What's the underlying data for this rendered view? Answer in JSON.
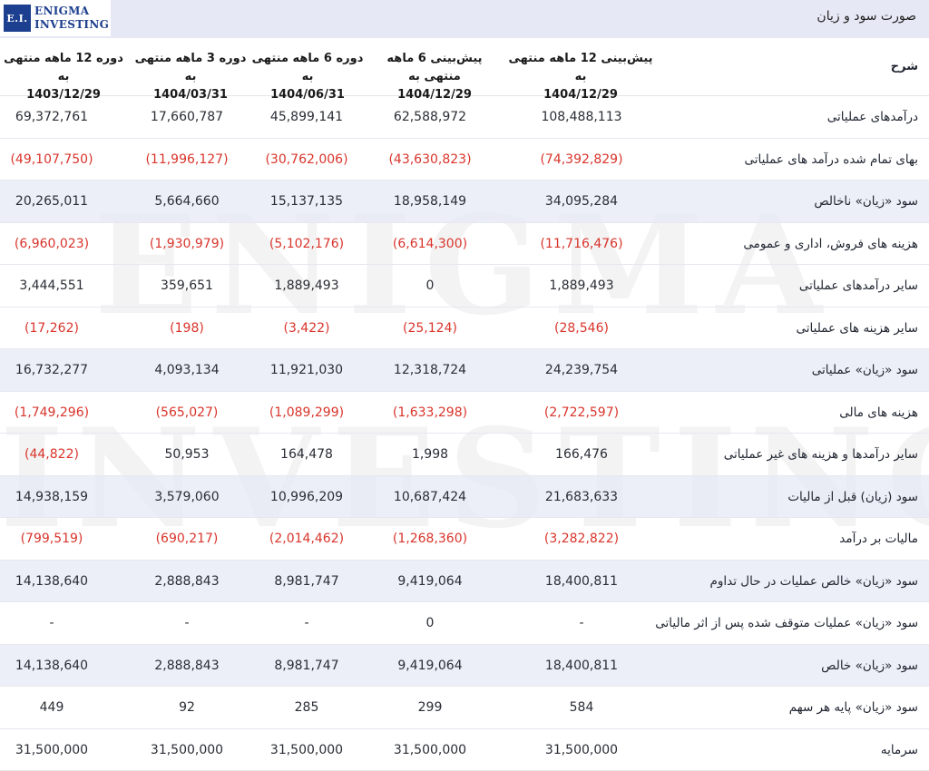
{
  "header": {
    "logo_mark": "E.I.",
    "logo_line1": "ENIGMA",
    "logo_line2": "INVESTING",
    "title": "صورت سود و زیان",
    "watermark1": "ENIGMA",
    "watermark2": "INVESTING"
  },
  "table": {
    "desc_header": "شرح",
    "columns": [
      {
        "label": "پیش‌بینی 12 ماهه منتهی به",
        "date": "1404/12/29"
      },
      {
        "label": "پیش‌بینی 6 ماهه منتهی به",
        "date": "1404/12/29"
      },
      {
        "label": "دوره 6 ماهه منتهی به",
        "date": "1404/06/31"
      },
      {
        "label": "دوره 3 ماهه منتهی به",
        "date": "1404/03/31"
      },
      {
        "label": "دوره 12 ماهه منتهی به",
        "date": "1403/12/29"
      }
    ],
    "rows": [
      {
        "label": "درآمدهای عملیاتی",
        "values": [
          "108,488,113",
          "62,588,972",
          "45,899,141",
          "17,660,787",
          "69,372,761"
        ]
      },
      {
        "label": "بهای تمام شده درآمد های عملیاتی",
        "values": [
          "(74,392,829)",
          "(43,630,823)",
          "(30,762,006)",
          "(11,996,127)",
          "(49,107,750)"
        ]
      },
      {
        "label": "سود «زیان» ناخالص",
        "values": [
          "34,095,284",
          "18,958,149",
          "15,137,135",
          "5,664,660",
          "20,265,011"
        ]
      },
      {
        "label": "هزینه های فروش، اداری و عمومی",
        "values": [
          "(11,716,476)",
          "(6,614,300)",
          "(5,102,176)",
          "(1,930,979)",
          "(6,960,023)"
        ]
      },
      {
        "label": "سایر درآمدهای عملیاتی",
        "values": [
          "1,889,493",
          "0",
          "1,889,493",
          "359,651",
          "3,444,551"
        ]
      },
      {
        "label": "سایر هزینه های عملیاتی",
        "values": [
          "(28,546)",
          "(25,124)",
          "(3,422)",
          "(198)",
          "(17,262)"
        ]
      },
      {
        "label": "سود «زیان» عملیاتی",
        "values": [
          "24,239,754",
          "12,318,724",
          "11,921,030",
          "4,093,134",
          "16,732,277"
        ]
      },
      {
        "label": "هزینه های مالی",
        "values": [
          "(2,722,597)",
          "(1,633,298)",
          "(1,089,299)",
          "(565,027)",
          "(1,749,296)"
        ]
      },
      {
        "label": "سایر درآمدها و هزینه های غیر عملیاتی",
        "values": [
          "166,476",
          "1,998",
          "164,478",
          "50,953",
          "(44,822)"
        ]
      },
      {
        "label": "سود (زیان) قبل از مالیات",
        "values": [
          "21,683,633",
          "10,687,424",
          "10,996,209",
          "3,579,060",
          "14,938,159"
        ]
      },
      {
        "label": "مالیات بر درآمد",
        "values": [
          "(3,282,822)",
          "(1,268,360)",
          "(2,014,462)",
          "(690,217)",
          "(799,519)"
        ]
      },
      {
        "label": "سود «زیان» خالص عملیات در حال تداوم",
        "values": [
          "18,400,811",
          "9,419,064",
          "8,981,747",
          "2,888,843",
          "14,138,640"
        ]
      },
      {
        "label": "سود «زیان» عملیات متوقف شده پس از اثر مالیاتی",
        "values": [
          "-",
          "0",
          "-",
          "-",
          "-"
        ]
      },
      {
        "label": "سود «زیان» خالص",
        "values": [
          "18,400,811",
          "9,419,064",
          "8,981,747",
          "2,888,843",
          "14,138,640"
        ]
      },
      {
        "label": "سود «زیان» پایه هر سهم",
        "values": [
          "584",
          "299",
          "285",
          "92",
          "449"
        ]
      },
      {
        "label": "سرمایه",
        "values": [
          "31,500,000",
          "31,500,000",
          "31,500,000",
          "31,500,000",
          "31,500,000"
        ]
      }
    ]
  }
}
